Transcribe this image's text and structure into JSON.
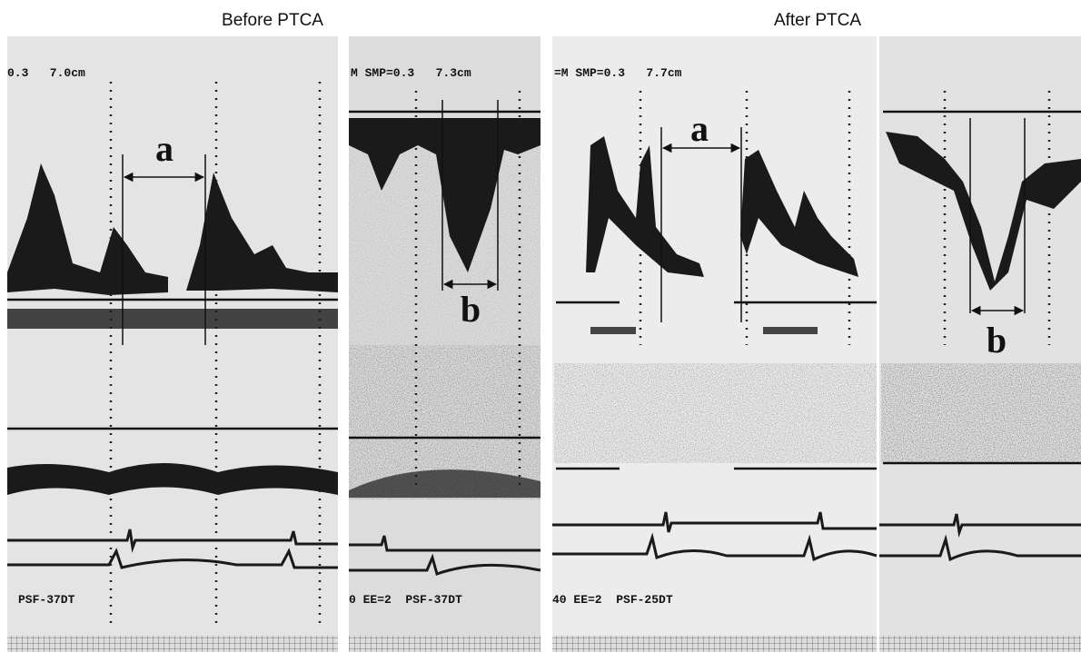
{
  "headings": [
    "Before PTCA",
    "After PTCA"
  ],
  "panels": [
    {
      "header": "0.3   7.0cm",
      "footer": "PSF-37DT",
      "label": "a"
    },
    {
      "header": "M SMP=0.3   7.3cm",
      "footer": "0 EE=2  PSF-37DT",
      "label": "b"
    },
    {
      "header": "=M SMP=0.3   7.7cm",
      "footer": "40 EE=2  PSF-25DT",
      "label": "a"
    },
    {
      "label": "b"
    }
  ]
}
